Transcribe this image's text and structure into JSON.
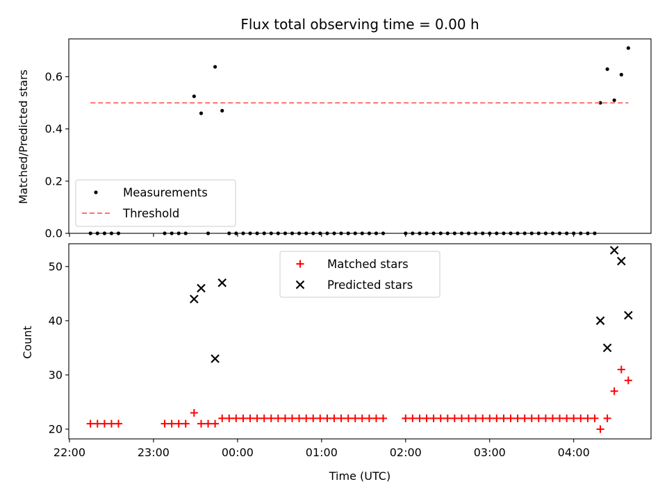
{
  "chart_data": [
    {
      "type": "scatter",
      "title": "Flux total observing time = 0.00 h",
      "xlabel": "",
      "ylabel": "Matched/Predicted stars",
      "ylim": [
        0,
        0.745
      ],
      "yticks": [
        0.0,
        0.2,
        0.4,
        0.6
      ],
      "yticklabels": [
        "0.0",
        "0.2",
        "0.4",
        "0.6"
      ],
      "xlim_hours": [
        21.992,
        28.92
      ],
      "xticks_hours": [
        22,
        23,
        24,
        25,
        26,
        27,
        28
      ],
      "legend_position": "lower-left",
      "series": [
        {
          "name": "Measurements",
          "marker": "dot",
          "color": "#000000",
          "points": [
            [
              22.25,
              0
            ],
            [
              22.333,
              0
            ],
            [
              22.417,
              0
            ],
            [
              22.5,
              0
            ],
            [
              22.583,
              0
            ],
            [
              23.133,
              0
            ],
            [
              23.217,
              0
            ],
            [
              23.3,
              0
            ],
            [
              23.383,
              0
            ],
            [
              23.483,
              0.525
            ],
            [
              23.567,
              0.46
            ],
            [
              23.65,
              0
            ],
            [
              23.733,
              0.638
            ],
            [
              23.817,
              0.47
            ],
            [
              23.9,
              0
            ],
            [
              23.983,
              0
            ],
            [
              24.067,
              0
            ],
            [
              24.15,
              0
            ],
            [
              24.233,
              0
            ],
            [
              24.317,
              0
            ],
            [
              24.4,
              0
            ],
            [
              24.483,
              0
            ],
            [
              24.567,
              0
            ],
            [
              24.65,
              0
            ],
            [
              24.733,
              0
            ],
            [
              24.817,
              0
            ],
            [
              24.9,
              0
            ],
            [
              24.983,
              0
            ],
            [
              25.067,
              0
            ],
            [
              25.15,
              0
            ],
            [
              25.233,
              0
            ],
            [
              25.317,
              0
            ],
            [
              25.4,
              0
            ],
            [
              25.483,
              0
            ],
            [
              25.567,
              0
            ],
            [
              25.65,
              0
            ],
            [
              25.733,
              0
            ],
            [
              26.0,
              0
            ],
            [
              26.083,
              0
            ],
            [
              26.167,
              0
            ],
            [
              26.25,
              0
            ],
            [
              26.333,
              0
            ],
            [
              26.417,
              0
            ],
            [
              26.5,
              0
            ],
            [
              26.583,
              0
            ],
            [
              26.667,
              0
            ],
            [
              26.75,
              0
            ],
            [
              26.833,
              0
            ],
            [
              26.917,
              0
            ],
            [
              27.0,
              0
            ],
            [
              27.083,
              0
            ],
            [
              27.167,
              0
            ],
            [
              27.25,
              0
            ],
            [
              27.333,
              0
            ],
            [
              27.417,
              0
            ],
            [
              27.5,
              0
            ],
            [
              27.583,
              0
            ],
            [
              27.667,
              0
            ],
            [
              27.75,
              0
            ],
            [
              27.833,
              0
            ],
            [
              27.917,
              0
            ],
            [
              28.0,
              0
            ],
            [
              28.083,
              0
            ],
            [
              28.167,
              0
            ],
            [
              28.25,
              0
            ],
            [
              28.317,
              0.5
            ],
            [
              28.4,
              0.629
            ],
            [
              28.483,
              0.51
            ],
            [
              28.567,
              0.608
            ],
            [
              28.65,
              0.71
            ]
          ]
        },
        {
          "name": "Threshold",
          "marker": "dashed-line",
          "color": "#ff7070",
          "points": [
            [
              22.25,
              0.5
            ],
            [
              28.65,
              0.5
            ]
          ]
        }
      ]
    },
    {
      "type": "scatter",
      "title": "",
      "xlabel": "Time (UTC)",
      "ylabel": "Count",
      "ylim": [
        18.2,
        54.2
      ],
      "yticks": [
        20,
        30,
        40,
        50
      ],
      "yticklabels": [
        "20",
        "30",
        "40",
        "50"
      ],
      "xlim_hours": [
        21.992,
        28.92
      ],
      "xticks_hours": [
        22,
        23,
        24,
        25,
        26,
        27,
        28
      ],
      "xticklabels": [
        "22:00",
        "23:00",
        "00:00",
        "01:00",
        "02:00",
        "03:00",
        "04:00"
      ],
      "legend_position": "upper-center",
      "series": [
        {
          "name": "Matched stars",
          "marker": "plus",
          "color": "#ff0000",
          "points": [
            [
              22.25,
              21
            ],
            [
              22.333,
              21
            ],
            [
              22.417,
              21
            ],
            [
              22.5,
              21
            ],
            [
              22.583,
              21
            ],
            [
              23.133,
              21
            ],
            [
              23.217,
              21
            ],
            [
              23.3,
              21
            ],
            [
              23.383,
              21
            ],
            [
              23.483,
              23
            ],
            [
              23.567,
              21
            ],
            [
              23.65,
              21
            ],
            [
              23.733,
              21
            ],
            [
              23.817,
              22
            ],
            [
              23.9,
              22
            ],
            [
              23.983,
              22
            ],
            [
              24.067,
              22
            ],
            [
              24.15,
              22
            ],
            [
              24.233,
              22
            ],
            [
              24.317,
              22
            ],
            [
              24.4,
              22
            ],
            [
              24.483,
              22
            ],
            [
              24.567,
              22
            ],
            [
              24.65,
              22
            ],
            [
              24.733,
              22
            ],
            [
              24.817,
              22
            ],
            [
              24.9,
              22
            ],
            [
              24.983,
              22
            ],
            [
              25.067,
              22
            ],
            [
              25.15,
              22
            ],
            [
              25.233,
              22
            ],
            [
              25.317,
              22
            ],
            [
              25.4,
              22
            ],
            [
              25.483,
              22
            ],
            [
              25.567,
              22
            ],
            [
              25.65,
              22
            ],
            [
              25.733,
              22
            ],
            [
              26.0,
              22
            ],
            [
              26.083,
              22
            ],
            [
              26.167,
              22
            ],
            [
              26.25,
              22
            ],
            [
              26.333,
              22
            ],
            [
              26.417,
              22
            ],
            [
              26.5,
              22
            ],
            [
              26.583,
              22
            ],
            [
              26.667,
              22
            ],
            [
              26.75,
              22
            ],
            [
              26.833,
              22
            ],
            [
              26.917,
              22
            ],
            [
              27.0,
              22
            ],
            [
              27.083,
              22
            ],
            [
              27.167,
              22
            ],
            [
              27.25,
              22
            ],
            [
              27.333,
              22
            ],
            [
              27.417,
              22
            ],
            [
              27.5,
              22
            ],
            [
              27.583,
              22
            ],
            [
              27.667,
              22
            ],
            [
              27.75,
              22
            ],
            [
              27.833,
              22
            ],
            [
              27.917,
              22
            ],
            [
              28.0,
              22
            ],
            [
              28.083,
              22
            ],
            [
              28.167,
              22
            ],
            [
              28.25,
              22
            ],
            [
              28.317,
              20
            ],
            [
              28.4,
              22
            ],
            [
              28.483,
              27
            ],
            [
              28.567,
              31
            ],
            [
              28.65,
              29
            ]
          ]
        },
        {
          "name": "Predicted stars",
          "marker": "x",
          "color": "#000000",
          "points": [
            [
              23.483,
              44
            ],
            [
              23.567,
              46
            ],
            [
              23.733,
              33
            ],
            [
              23.817,
              47
            ],
            [
              28.317,
              40
            ],
            [
              28.4,
              35
            ],
            [
              28.483,
              53
            ],
            [
              28.567,
              51
            ],
            [
              28.65,
              41
            ]
          ]
        }
      ]
    }
  ]
}
